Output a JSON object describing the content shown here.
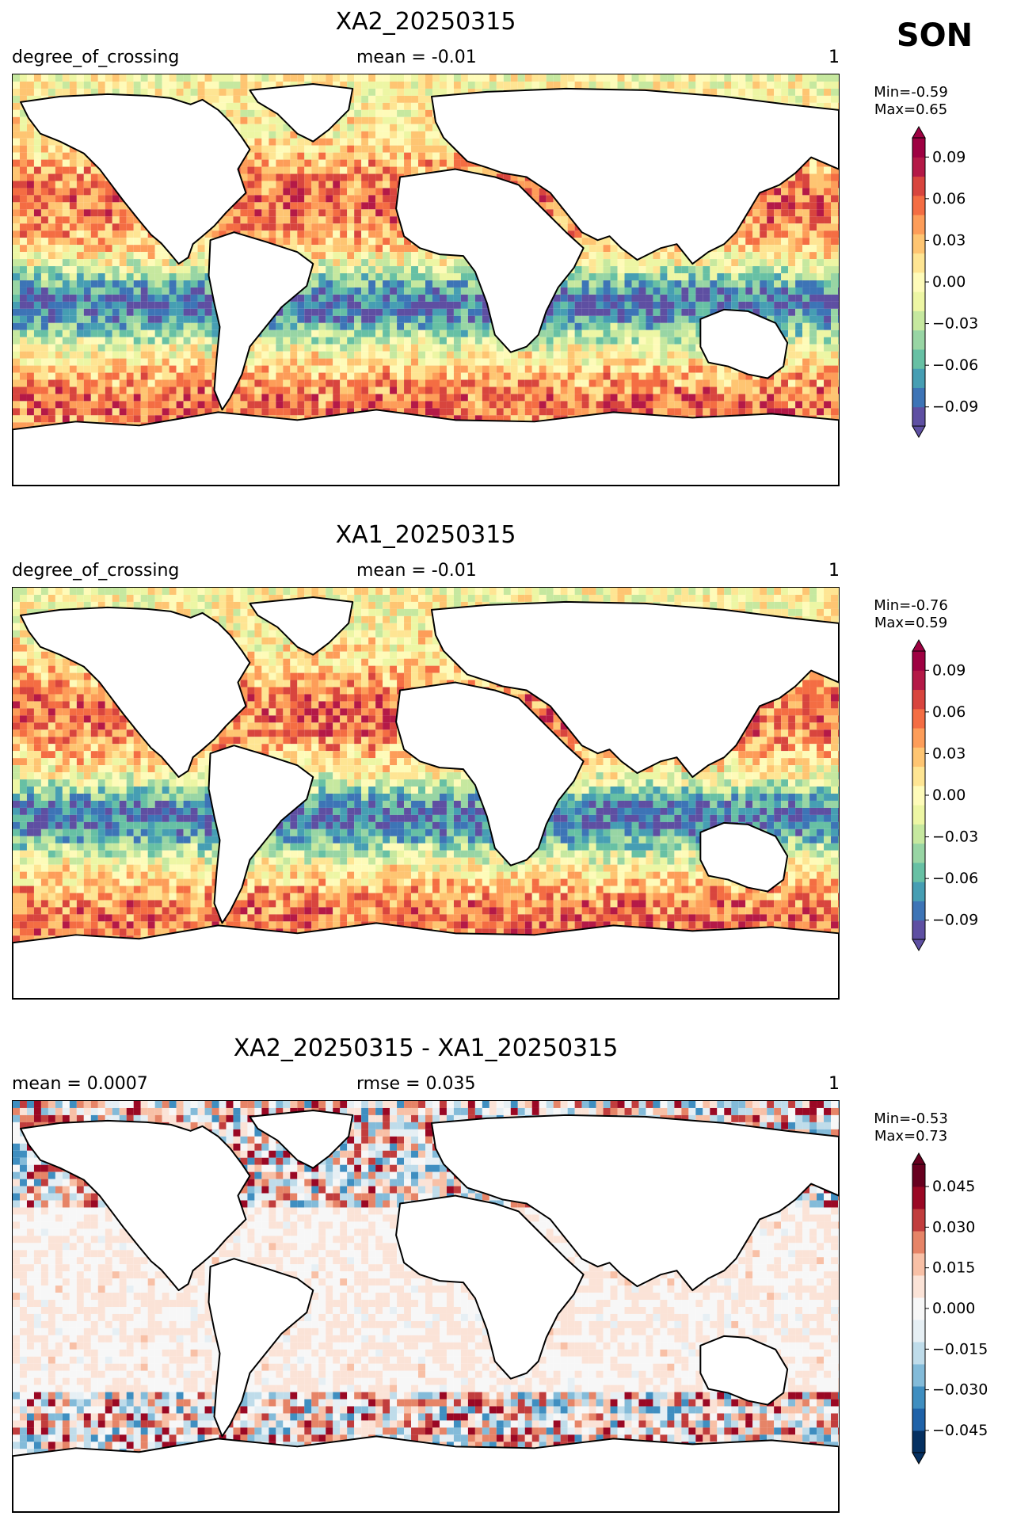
{
  "season": "SON",
  "panels": [
    {
      "title": "XA2_20250315",
      "left_label": "degree_of_crossing",
      "mid_label": "mean = -0.01",
      "right_label": "1",
      "stats_min": "Min=-0.59",
      "stats_max": "Max=0.65",
      "colormap": "Spectral_r",
      "colorbar_ticks": [
        "0.09",
        "0.06",
        "0.03",
        "0.00",
        "−0.03",
        "−0.06",
        "−0.09"
      ]
    },
    {
      "title": "XA1_20250315",
      "left_label": "degree_of_crossing",
      "mid_label": "mean = -0.01",
      "right_label": "1",
      "stats_min": "Min=-0.76",
      "stats_max": "Max=0.59",
      "colormap": "Spectral_r",
      "colorbar_ticks": [
        "0.09",
        "0.06",
        "0.03",
        "0.00",
        "−0.03",
        "−0.06",
        "−0.09"
      ]
    },
    {
      "title": "XA2_20250315 - XA1_20250315",
      "left_label": "mean = 0.0007",
      "mid_label": "rmse = 0.035",
      "right_label": "1",
      "stats_min": "Min=-0.53",
      "stats_max": "Max=0.73",
      "colormap": "RdBu_r",
      "colorbar_ticks": [
        "0.045",
        "0.030",
        "0.015",
        "0.000",
        "−0.015",
        "−0.030",
        "−0.045"
      ]
    }
  ],
  "colors": {
    "spectral": [
      "#5e4fa2",
      "#3d74b6",
      "#469eb3",
      "#67c0a4",
      "#98d5a4",
      "#c6e89f",
      "#edf6a4",
      "#fefbb9",
      "#fee593",
      "#fec572",
      "#fd9d59",
      "#f46d43",
      "#d8453e",
      "#b41947",
      "#9e0142"
    ],
    "rdbu": [
      "#053061",
      "#1f62a8",
      "#3f8ec0",
      "#83bbd9",
      "#bfdcea",
      "#e6eff4",
      "#f7f7f7",
      "#fbe3d7",
      "#f8c0a6",
      "#e68467",
      "#c13d3d",
      "#9a0824",
      "#67001f"
    ],
    "land": "#ffffff",
    "coast": "#000000"
  }
}
